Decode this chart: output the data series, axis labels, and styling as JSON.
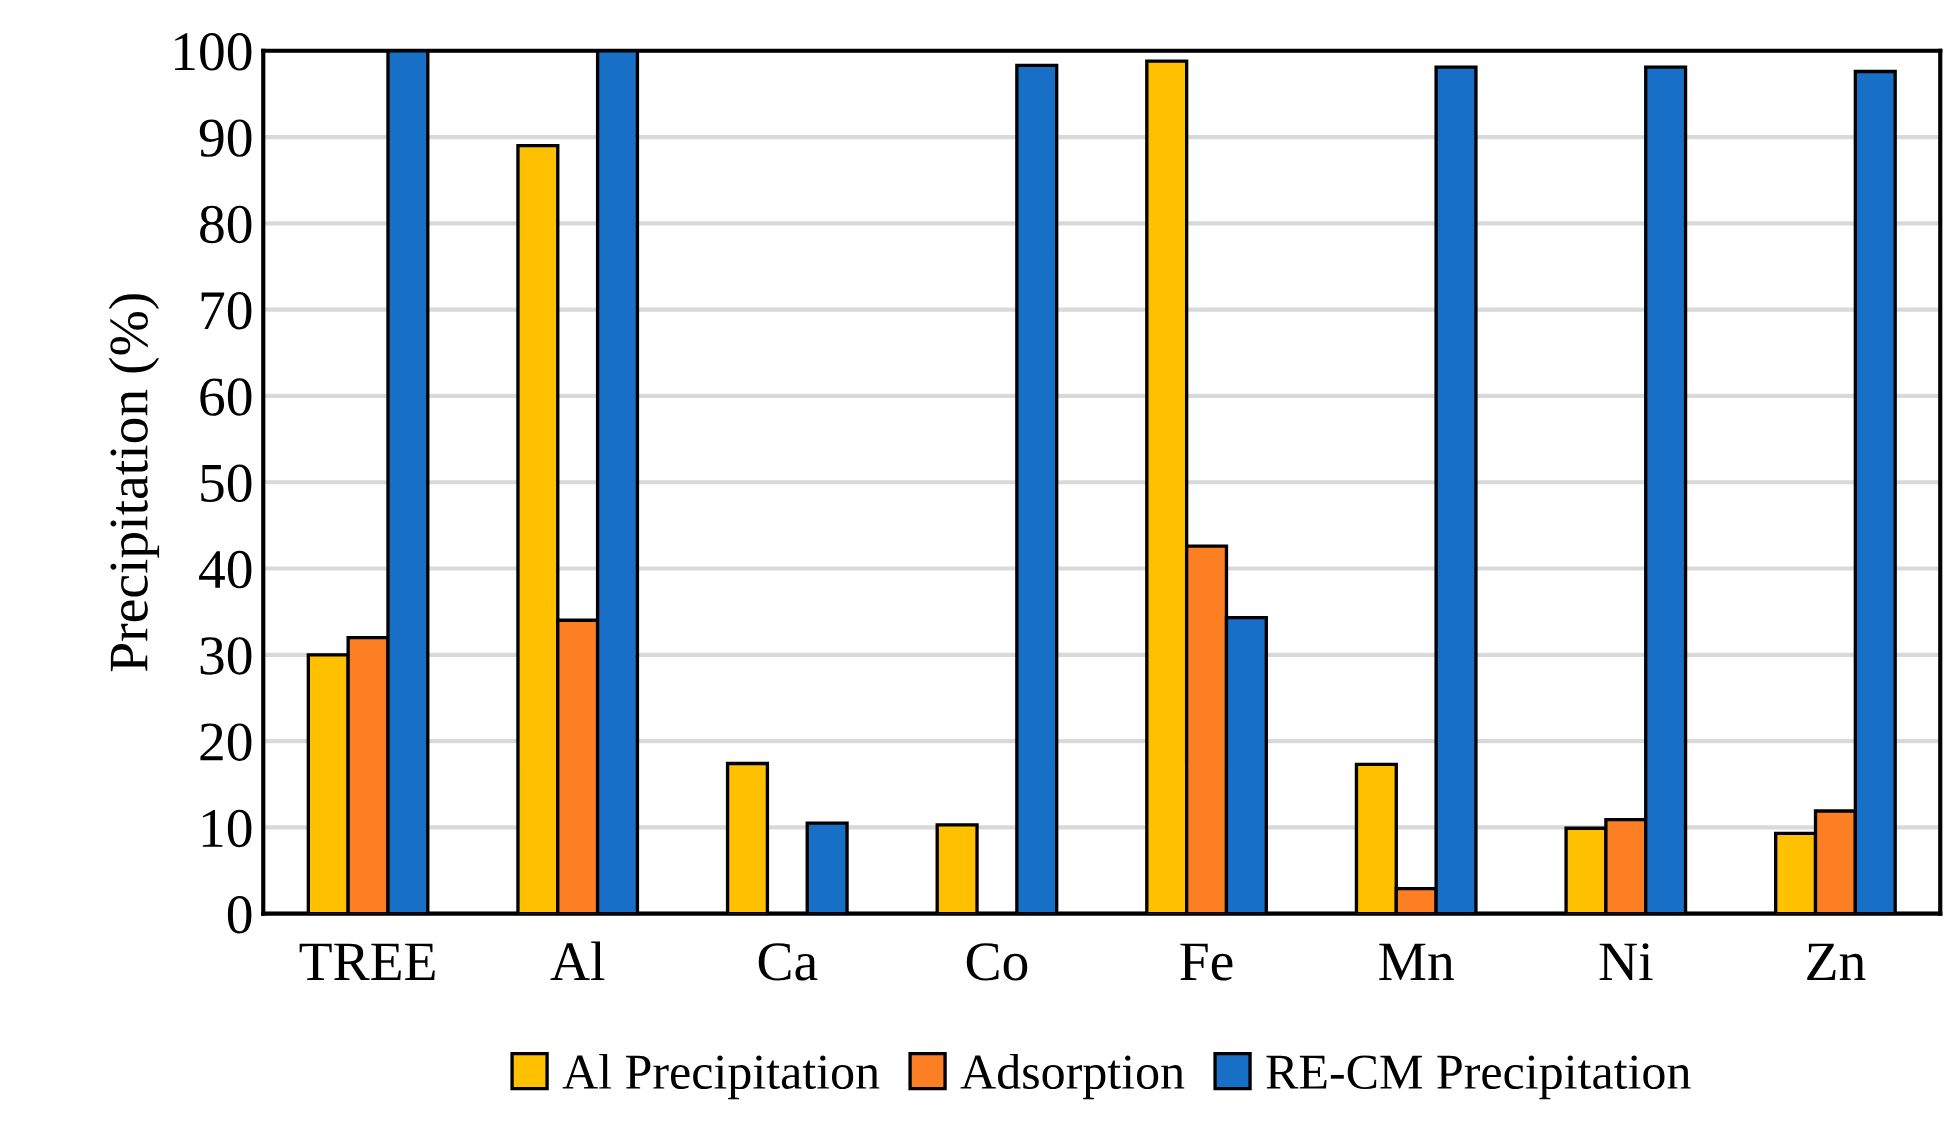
{
  "chart_data": {
    "type": "bar",
    "ylabel": "Precipitation (%)",
    "categories": [
      "TREE",
      "Al",
      "Ca",
      "Co",
      "Fe",
      "Mn",
      "Ni",
      "Zn"
    ],
    "series": [
      {
        "name": "Al Precipitation",
        "color": "#ffc000",
        "values": [
          30,
          89,
          17.4,
          10.3,
          98.8,
          17.3,
          9.9,
          9.3
        ]
      },
      {
        "name": "Adsorption",
        "color": "#fd7f23",
        "values": [
          32,
          34,
          null,
          null,
          42.6,
          2.9,
          10.9,
          11.9
        ]
      },
      {
        "name": "RE-CM Precipitation",
        "color": "#1770c6",
        "values": [
          100,
          100,
          10.5,
          98.3,
          34.3,
          98.1,
          98.1,
          97.6
        ]
      }
    ],
    "ylim": [
      0,
      100
    ],
    "yticks": [
      0,
      10,
      20,
      30,
      40,
      50,
      60,
      70,
      80,
      90,
      100
    ],
    "grid": "y",
    "legend": "bottom"
  }
}
